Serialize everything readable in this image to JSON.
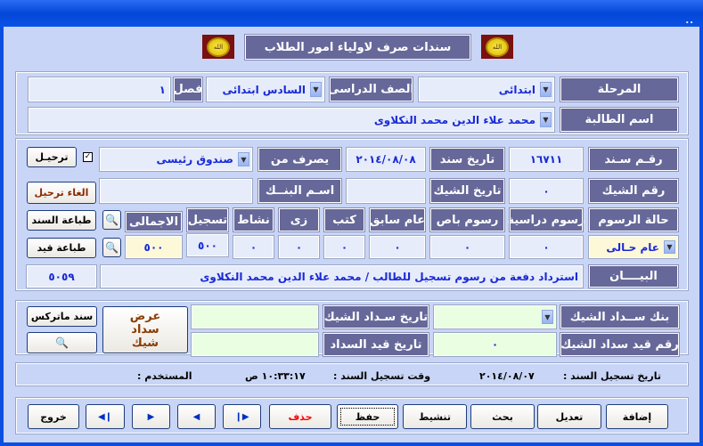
{
  "window": {
    "close_glyph": ".."
  },
  "header": {
    "title": "سندات صرف لاولياء امور الطلاب",
    "logo_text": "الله"
  },
  "student": {
    "stage_label": "المرحلة",
    "stage_value": "ابتدائى",
    "grade_label": "الصف الدراسى",
    "grade_value": "السادس ابتدائى",
    "class_label": "فصل",
    "class_value": "١",
    "name_label": "اسم الطالبة",
    "name_value": "محمد  علاء الدين محمد النكلاوى"
  },
  "voucher": {
    "number_label": "رقـم سـند",
    "number_value": "١٦٧١١",
    "date_label": "تاريخ سند",
    "date_value": "٢٠١٤/٠٨/٠٨",
    "paid_from_label": "يصرف من",
    "paid_from_value": "صندوق رئيسى",
    "posted_checked": true,
    "post_button": "ترحيـل",
    "check_no_label": "رقم الشيك",
    "check_no_value": "٠",
    "check_date_label": "تاريخ الشيك",
    "check_date_value": "",
    "bank_label": "اسـم البنــك",
    "bank_value": "",
    "unpost_button": "الغاء ترحيل",
    "print_voucher_button": "طباعة السند",
    "print_entry_button": "طباعة قيد",
    "fees_status_label": "حالة الرسوم",
    "fees_status_value": "عام حـالى",
    "fee_columns": [
      "رسوم دراسية",
      "رسوم باص",
      "عام سابق",
      "كتب",
      "زى",
      "نشاط",
      "تسجيل",
      "الاجمالى"
    ],
    "fee_values": [
      "٠",
      "٠",
      "٠",
      "٠",
      "٠",
      "٠",
      "٥٠٠",
      "٥٠٠"
    ],
    "statement_label": "البيــــان",
    "statement_value": "استرداد دفعة من رسوم تسجيل  للطالب / محمد  علاء الدين محمد النكلاوى",
    "entry_no_value": "٥٠٥٩"
  },
  "check_payment": {
    "bank_label": "بنك ســداد الشيك",
    "bank_value": "",
    "date_label": "تاريخ سـداد الشيك",
    "date_value": "",
    "entry_no_label": "رقم قيد سداد الشيك",
    "entry_no_value": "٠",
    "entry_date_label": "تاريخ قيد السداد",
    "entry_date_value": "",
    "show_button": "عرض سداد شيك",
    "matrix_button": "سند ماتركس"
  },
  "status": {
    "reg_date_label": "تاريخ تسجيل السند  :",
    "reg_date_value": "٢٠١٤/٠٨/٠٧",
    "reg_time_label": "وقت تسجيل السند  :",
    "reg_time_value": "١٠:٣٣:١٧ ص",
    "user_label": "المستخدم :",
    "user_value": ""
  },
  "toolbar": {
    "add": "إضافة",
    "edit": "تعديل",
    "search": "بحث",
    "activate": "تنشيط",
    "save": "حفظ",
    "delete": "حذف",
    "exit": "خروج",
    "delete_color": "#ff0000"
  }
}
